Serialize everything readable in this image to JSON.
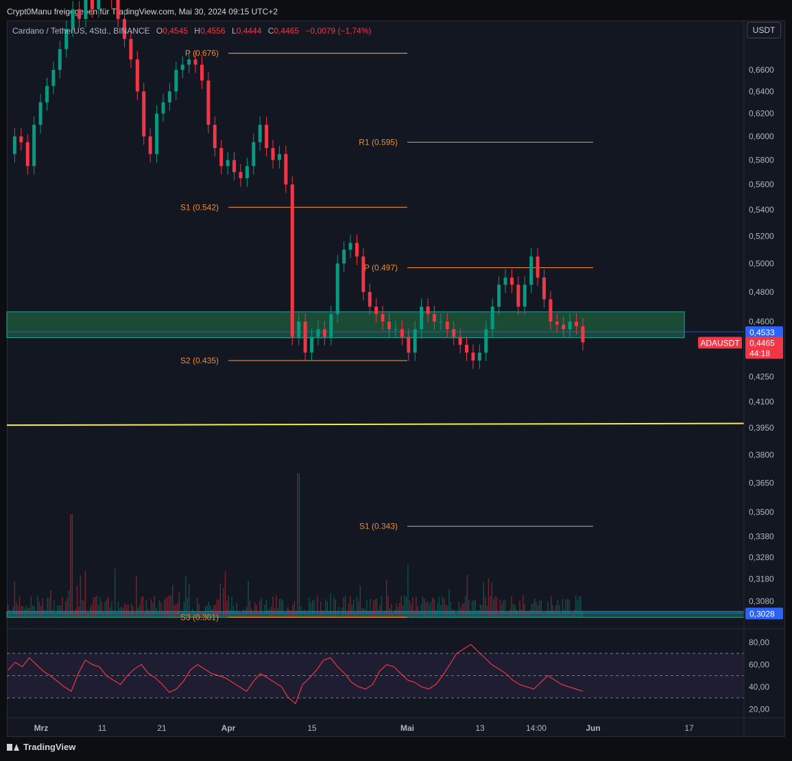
{
  "header": {
    "credit": "Crypt0Manu freigegeben für TradingView.com, Mai 30, 2024 09:15 UTC+2"
  },
  "legend": {
    "symbol": "Cardano / TetherUS, 4Std., BINANCE",
    "o_label": "O",
    "o_value": "0,4545",
    "h_label": "H",
    "h_value": "0,4556",
    "l_label": "L",
    "l_value": "0,4444",
    "c_label": "C",
    "c_value": "0,4465",
    "change": "−0,0079 (−1,74%)"
  },
  "currency_button": "USDT",
  "footer": {
    "brand": "TradingView"
  },
  "colors": {
    "up": "#089981",
    "down": "#f23645",
    "pivot": "#f0892e",
    "zone_fill": "#1f5c3c",
    "zone_border": "#26a69a",
    "support_line": "#ffeb3b",
    "rsi": "#f23645",
    "price_tag": "#2962ff"
  },
  "chart_data": {
    "type": "candlestick",
    "price_axis": {
      "ticks": [
        "0,6600",
        "0,6400",
        "0,6200",
        "0,6000",
        "0,5800",
        "0,5600",
        "0,5400",
        "0,5200",
        "0,5000",
        "0,4800",
        "0,4600",
        "0,4250",
        "0,4100",
        "0,3950",
        "0,3800",
        "0,3650",
        "0,3500",
        "0,3380",
        "0,3280",
        "0,3180",
        "0,3080"
      ],
      "tick_values": [
        0.66,
        0.64,
        0.62,
        0.6,
        0.58,
        0.56,
        0.54,
        0.52,
        0.5,
        0.48,
        0.46,
        0.425,
        0.41,
        0.395,
        0.38,
        0.365,
        0.35,
        0.338,
        0.328,
        0.318,
        0.308
      ],
      "scale": "log"
    },
    "time_axis": {
      "labels": [
        "Mrz",
        "11",
        "21",
        "Apr",
        "15",
        "Mai",
        "13",
        "14:00",
        "Jun",
        "17"
      ]
    },
    "price_tags": [
      {
        "text": "0,4533",
        "value": 0.4533,
        "color": "#2962ff"
      },
      {
        "symbol": "ADAUSDT",
        "text": "0,4465",
        "timer": "44:18",
        "value": 0.4465,
        "color": "#f23645"
      },
      {
        "text": "0,3028",
        "value": 0.3028,
        "color": "#2962ff"
      }
    ],
    "pivot_levels": [
      {
        "label": "P (0.676)",
        "value": 0.676,
        "from": "Apr",
        "to": "Mai"
      },
      {
        "label": "R1 (0.595)",
        "value": 0.595,
        "from": "Mai",
        "to": "Jun"
      },
      {
        "label": "S1 (0.542)",
        "value": 0.542,
        "from": "Apr",
        "to": "Mai"
      },
      {
        "label": "P (0.497)",
        "value": 0.497,
        "from": "Mai",
        "to": "Jun"
      },
      {
        "label": "S2 (0.435)",
        "value": 0.435,
        "from": "Apr",
        "to": "Mai"
      },
      {
        "label": "S1 (0.343)",
        "value": 0.343,
        "from": "Mai",
        "to": "Jun"
      },
      {
        "label": "S3 (0.301)",
        "value": 0.301,
        "from": "Apr",
        "to": "Mai"
      }
    ],
    "zones": [
      {
        "from_price": 0.4665,
        "to_price": 0.4495
      },
      {
        "from_price": 0.3035,
        "to_price": 0.301
      }
    ],
    "support_line": {
      "start_price": 0.3965,
      "end_price": 0.3975
    },
    "close_series_approx": [
      0.585,
      0.6,
      0.595,
      0.575,
      0.61,
      0.63,
      0.645,
      0.66,
      0.68,
      0.7,
      0.72,
      0.71,
      0.735,
      0.72,
      0.745,
      0.74,
      0.73,
      0.71,
      0.69,
      0.67,
      0.64,
      0.6,
      0.585,
      0.62,
      0.63,
      0.64,
      0.66,
      0.665,
      0.67,
      0.665,
      0.65,
      0.61,
      0.59,
      0.575,
      0.58,
      0.57,
      0.565,
      0.575,
      0.595,
      0.61,
      0.59,
      0.58,
      0.585,
      0.56,
      0.45,
      0.46,
      0.44,
      0.45,
      0.455,
      0.45,
      0.465,
      0.5,
      0.51,
      0.515,
      0.505,
      0.48,
      0.47,
      0.465,
      0.46,
      0.455,
      0.455,
      0.45,
      0.44,
      0.455,
      0.47,
      0.465,
      0.46,
      0.46,
      0.455,
      0.45,
      0.445,
      0.44,
      0.435,
      0.44,
      0.455,
      0.47,
      0.485,
      0.49,
      0.485,
      0.47,
      0.485,
      0.505,
      0.49,
      0.475,
      0.46,
      0.458,
      0.455,
      0.46,
      0.457,
      0.4465
    ],
    "rsi": {
      "ticks": [
        "80,00",
        "60,00",
        "40,00",
        "20,00"
      ],
      "tick_values": [
        80,
        60,
        40,
        20
      ],
      "bands": [
        70,
        50,
        30
      ],
      "values": [
        55,
        62,
        58,
        66,
        60,
        54,
        50,
        45,
        40,
        36,
        52,
        64,
        60,
        58,
        50,
        46,
        42,
        50,
        56,
        60,
        52,
        48,
        42,
        35,
        38,
        45,
        55,
        60,
        56,
        52,
        50,
        48,
        44,
        40,
        36,
        45,
        52,
        48,
        44,
        40,
        30,
        25,
        42,
        48,
        55,
        64,
        66,
        58,
        52,
        44,
        40,
        38,
        42,
        54,
        60,
        58,
        52,
        46,
        44,
        40,
        38,
        42,
        50,
        60,
        70,
        74,
        78,
        72,
        66,
        60,
        56,
        52,
        46,
        42,
        40,
        38,
        44,
        50,
        46,
        42,
        40,
        38,
        36
      ]
    }
  }
}
